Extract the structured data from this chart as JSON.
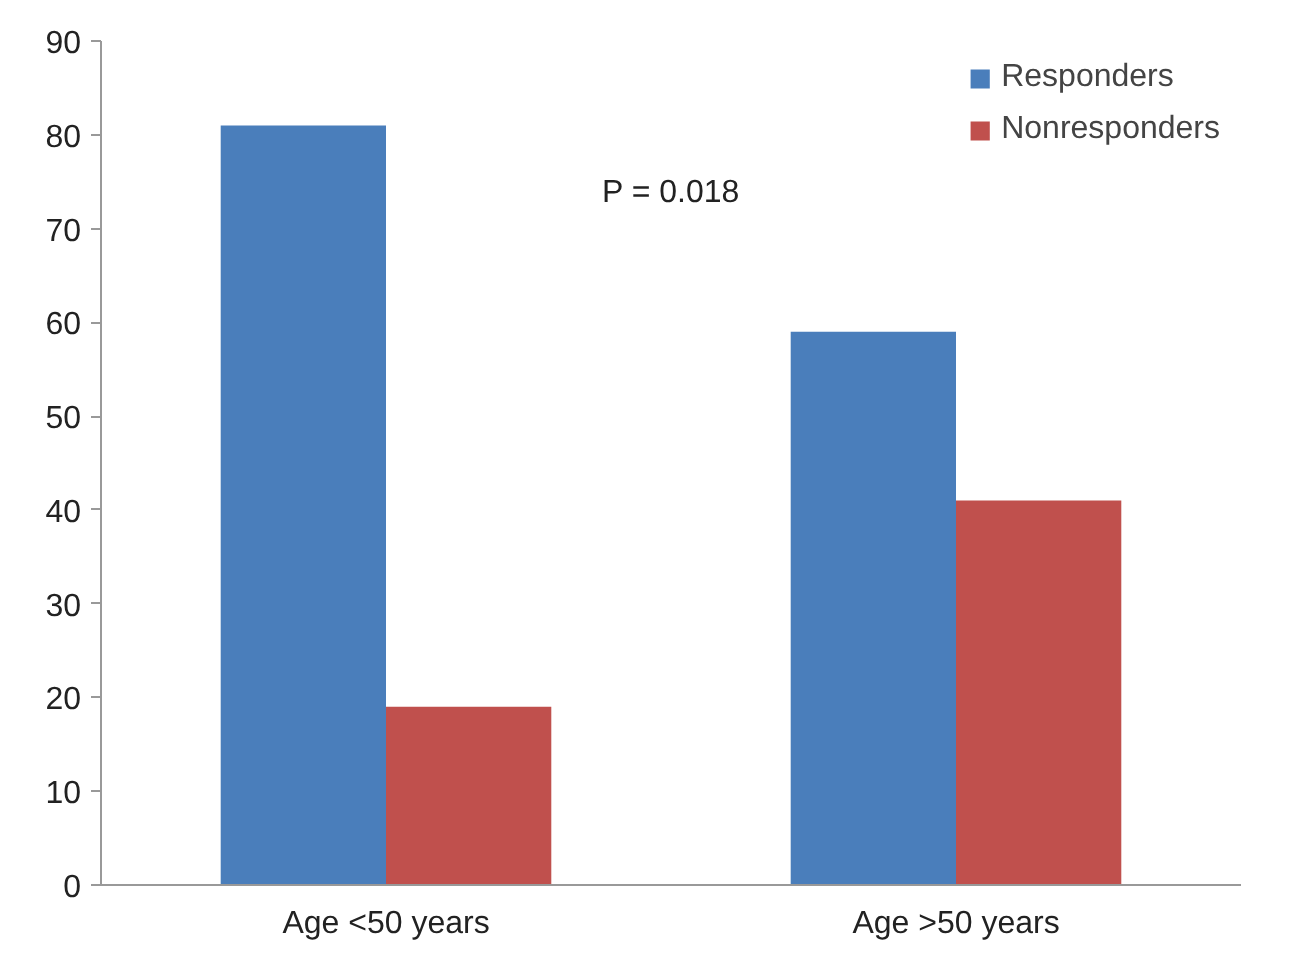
{
  "chart_data": {
    "type": "bar",
    "categories": [
      "Age <50 years",
      "Age >50 years"
    ],
    "series": [
      {
        "name": "Responders",
        "color": "#4a7ebb",
        "values": [
          81,
          59
        ]
      },
      {
        "name": "Nonresponders",
        "color": "#c0504d",
        "values": [
          19,
          41
        ]
      }
    ],
    "ylim": [
      0,
      90
    ],
    "yticks": [
      0,
      10,
      20,
      30,
      40,
      50,
      60,
      70,
      80,
      90
    ],
    "grid": false,
    "legend": "top right",
    "annotations": [
      "P = 0.018"
    ]
  }
}
